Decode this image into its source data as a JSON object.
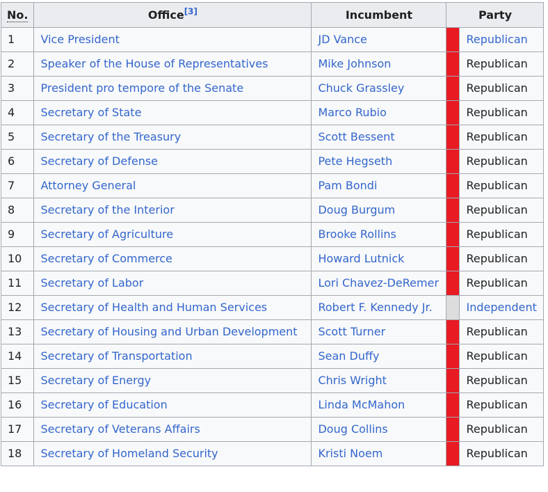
{
  "colors": {
    "republican": "#E81B23",
    "independent": "#DDDDDD",
    "link_blue": "#3366CC",
    "header_bg": "#EAECF0",
    "cell_bg": "#F8F9FA",
    "border": "#A2A9B1",
    "text": "#202122"
  },
  "table": {
    "headers": {
      "no": "No.",
      "office": "Office",
      "office_ref": "[3]",
      "incumbent": "Incumbent",
      "party": "Party"
    },
    "rows": [
      {
        "no": "1",
        "office": "Vice President",
        "incumbent": "JD Vance",
        "party": "Republican",
        "party_color": "#E81B23",
        "party_is_link": true
      },
      {
        "no": "2",
        "office": "Speaker of the House of Representatives",
        "incumbent": "Mike Johnson",
        "party": "Republican",
        "party_color": "#E81B23",
        "party_is_link": false
      },
      {
        "no": "3",
        "office": "President pro tempore of the Senate",
        "incumbent": "Chuck Grassley",
        "party": "Republican",
        "party_color": "#E81B23",
        "party_is_link": false
      },
      {
        "no": "4",
        "office": "Secretary of State",
        "incumbent": "Marco Rubio",
        "party": "Republican",
        "party_color": "#E81B23",
        "party_is_link": false
      },
      {
        "no": "5",
        "office": "Secretary of the Treasury",
        "incumbent": "Scott Bessent",
        "party": "Republican",
        "party_color": "#E81B23",
        "party_is_link": false
      },
      {
        "no": "6",
        "office": "Secretary of Defense",
        "incumbent": "Pete Hegseth",
        "party": "Republican",
        "party_color": "#E81B23",
        "party_is_link": false
      },
      {
        "no": "7",
        "office": "Attorney General",
        "incumbent": "Pam Bondi",
        "party": "Republican",
        "party_color": "#E81B23",
        "party_is_link": false
      },
      {
        "no": "8",
        "office": "Secretary of the Interior",
        "incumbent": "Doug Burgum",
        "party": "Republican",
        "party_color": "#E81B23",
        "party_is_link": false
      },
      {
        "no": "9",
        "office": "Secretary of Agriculture",
        "incumbent": "Brooke Rollins",
        "party": "Republican",
        "party_color": "#E81B23",
        "party_is_link": false
      },
      {
        "no": "10",
        "office": "Secretary of Commerce",
        "incumbent": "Howard Lutnick",
        "party": "Republican",
        "party_color": "#E81B23",
        "party_is_link": false
      },
      {
        "no": "11",
        "office": "Secretary of Labor",
        "incumbent": "Lori Chavez-DeRemer",
        "party": "Republican",
        "party_color": "#E81B23",
        "party_is_link": false
      },
      {
        "no": "12",
        "office": "Secretary of Health and Human Services",
        "incumbent": "Robert F. Kennedy Jr.",
        "party": "Independent",
        "party_color": "#DDDDDD",
        "party_is_link": true
      },
      {
        "no": "13",
        "office": "Secretary of Housing and Urban Development",
        "incumbent": "Scott Turner",
        "party": "Republican",
        "party_color": "#E81B23",
        "party_is_link": false
      },
      {
        "no": "14",
        "office": "Secretary of Transportation",
        "incumbent": "Sean Duffy",
        "party": "Republican",
        "party_color": "#E81B23",
        "party_is_link": false
      },
      {
        "no": "15",
        "office": "Secretary of Energy",
        "incumbent": "Chris Wright",
        "party": "Republican",
        "party_color": "#E81B23",
        "party_is_link": false
      },
      {
        "no": "16",
        "office": "Secretary of Education",
        "incumbent": "Linda McMahon",
        "party": "Republican",
        "party_color": "#E81B23",
        "party_is_link": false
      },
      {
        "no": "17",
        "office": "Secretary of Veterans Affairs",
        "incumbent": "Doug Collins",
        "party": "Republican",
        "party_color": "#E81B23",
        "party_is_link": false
      },
      {
        "no": "18",
        "office": "Secretary of Homeland Security",
        "incumbent": "Kristi Noem",
        "party": "Republican",
        "party_color": "#E81B23",
        "party_is_link": false
      }
    ]
  }
}
